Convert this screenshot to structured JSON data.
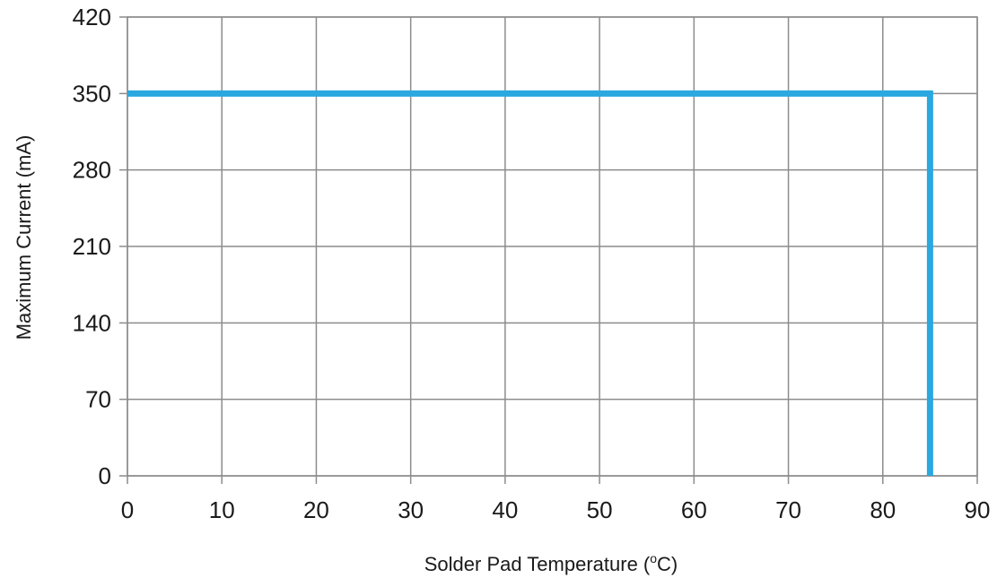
{
  "chart_data": {
    "type": "line",
    "title": "",
    "xlabel": "Solder Pad Temperature (",
    "xlabel_sup": "o",
    "xlabel_suffix": "C)",
    "ylabel": "Maximum Current (mA)",
    "xlim": [
      0,
      90
    ],
    "ylim": [
      0,
      420
    ],
    "x_ticks": [
      0,
      10,
      20,
      30,
      40,
      50,
      60,
      70,
      80,
      90
    ],
    "y_ticks": [
      0,
      70,
      140,
      210,
      280,
      350,
      420
    ],
    "grid": true,
    "legend": "none",
    "series": [
      {
        "color": "#2aa8df",
        "points": [
          [
            0,
            350
          ],
          [
            85,
            350
          ],
          [
            85,
            0
          ]
        ]
      }
    ]
  }
}
